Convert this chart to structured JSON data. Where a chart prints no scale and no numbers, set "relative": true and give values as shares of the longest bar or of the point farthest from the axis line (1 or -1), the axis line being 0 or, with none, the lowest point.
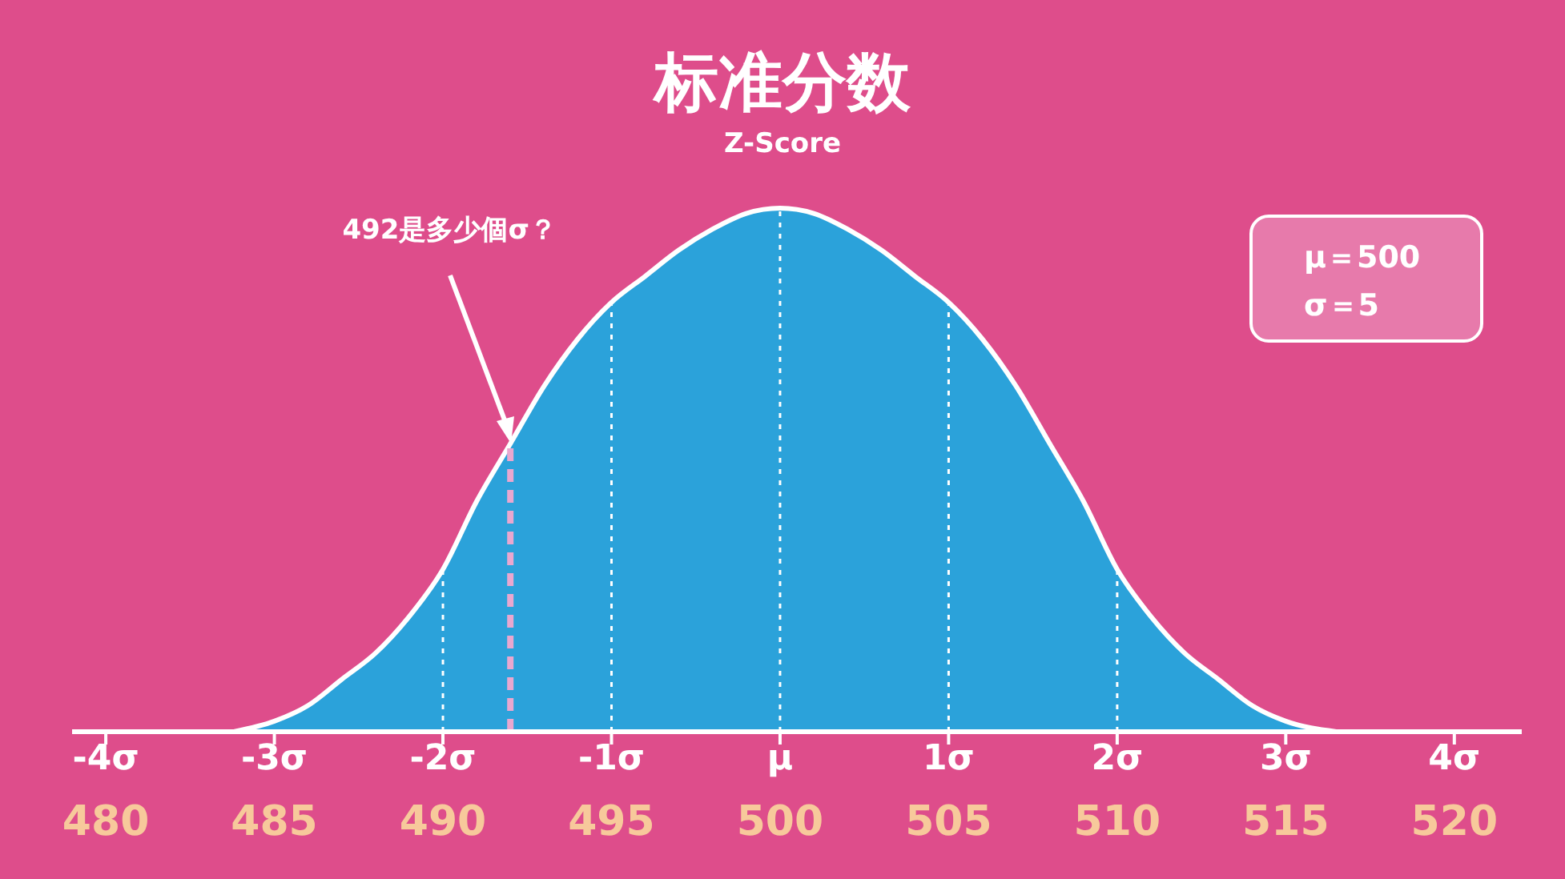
{
  "chart_data": {
    "type": "area",
    "title": "标准分数",
    "subtitle": "Z-Score",
    "relative": true,
    "series": [
      {
        "color": "#2ba2da",
        "x": [
          483.8,
          485,
          486,
          487,
          488,
          489,
          490,
          491,
          492,
          493,
          494,
          495,
          496,
          497,
          498,
          499,
          500,
          501,
          502,
          503,
          504,
          505,
          506,
          507,
          508,
          509,
          510,
          511,
          512,
          513,
          514,
          515,
          516.5
        ],
        "values": [
          0,
          0.02,
          0.05,
          0.1,
          0.15,
          0.22,
          0.31,
          0.44,
          0.55,
          0.66,
          0.75,
          0.82,
          0.87,
          0.92,
          0.96,
          0.99,
          1,
          0.99,
          0.96,
          0.92,
          0.87,
          0.82,
          0.75,
          0.66,
          0.55,
          0.44,
          0.31,
          0.22,
          0.15,
          0.1,
          0.05,
          0.02,
          0
        ]
      }
    ],
    "xlim": [
      479,
      522
    ],
    "xticks": [
      480,
      485,
      490,
      495,
      500,
      505,
      510,
      515,
      520
    ],
    "x2lim": [
      -4.2,
      4.4
    ],
    "x2ticks": [
      {
        "value": -4,
        "label": "-4σ"
      },
      {
        "value": -3,
        "label": "-3σ"
      },
      {
        "value": -2,
        "label": "-2σ"
      },
      {
        "value": -1,
        "label": "-1σ"
      },
      {
        "value": 0,
        "label": "μ"
      },
      {
        "value": 1,
        "label": "1σ"
      },
      {
        "value": 2,
        "label": "2σ"
      },
      {
        "value": 3,
        "label": "3σ"
      },
      {
        "value": 4,
        "label": "4σ"
      }
    ],
    "ref_lines": [
      {
        "axis": "x",
        "value": 490,
        "color": "#ffffff",
        "line_style": "dotted"
      },
      {
        "axis": "x",
        "value": 495,
        "color": "#ffffff",
        "line_style": "dotted"
      },
      {
        "axis": "x",
        "value": 500,
        "color": "#ffffff",
        "line_style": "dotted"
      },
      {
        "axis": "x",
        "value": 505,
        "color": "#ffffff",
        "line_style": "dotted"
      },
      {
        "axis": "x",
        "value": 510,
        "color": "#ffffff",
        "line_style": "dotted"
      },
      {
        "axis": "x",
        "value": 492,
        "color": "#e9a7cf",
        "line_style": "dashed"
      }
    ],
    "annotations": [
      "492是多少個σ？",
      "μ＝500",
      "σ＝5"
    ]
  }
}
